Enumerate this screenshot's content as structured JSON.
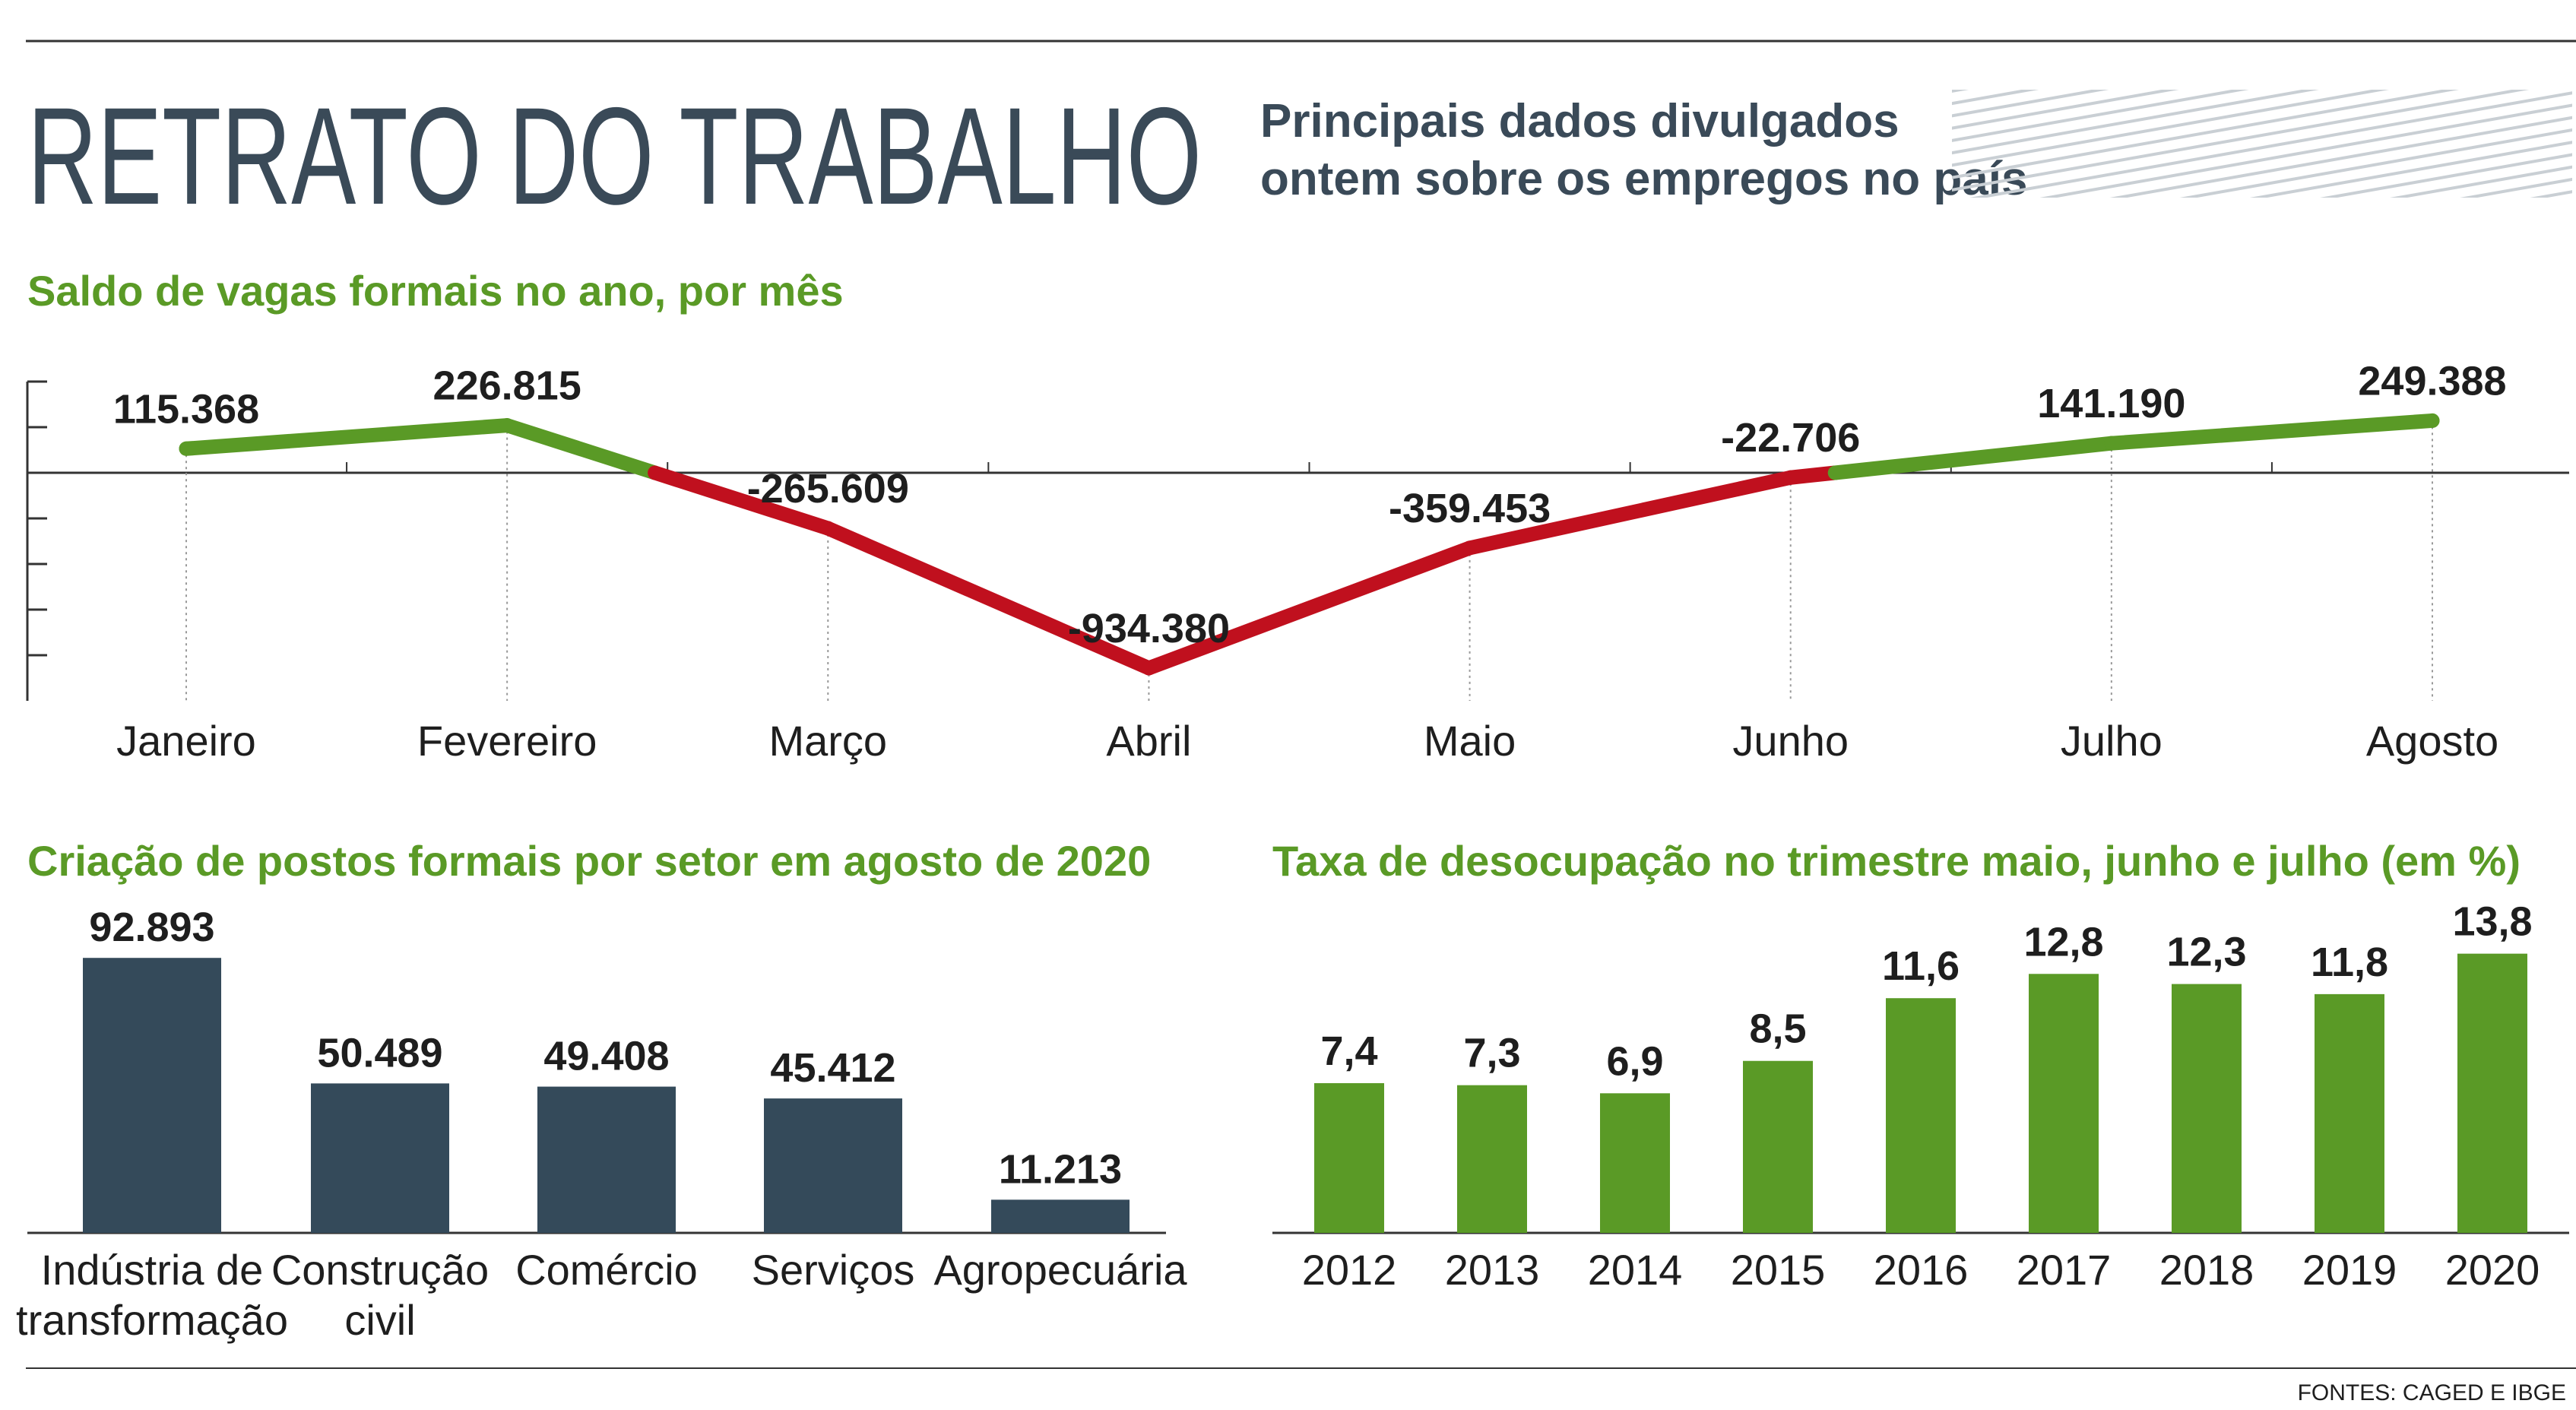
{
  "header": {
    "title": "RETRATO DO TRABALHO",
    "subtitle_line1": "Principais dados divulgados",
    "subtitle_line2": "ontem sobre os empregos no país"
  },
  "colors": {
    "positive": "#5a9a26",
    "negative": "#c0101e",
    "navy": "#344a5a",
    "section_title": "#5a9a26",
    "text": "#1e1e1e",
    "rule": "#333333"
  },
  "chart_data": [
    {
      "id": "saldo",
      "type": "line",
      "title": "Saldo de vagas formais no ano, por mês",
      "categories": [
        "Janeiro",
        "Fevereiro",
        "Março",
        "Abril",
        "Maio",
        "Junho",
        "Julho",
        "Agosto"
      ],
      "values": [
        115368,
        226815,
        -265609,
        -934380,
        -359453,
        -22706,
        141190,
        249388
      ],
      "labels": [
        "115.368",
        "226.815",
        "-265.609",
        "-934.380",
        "-359.453",
        "-22.706",
        "141.190",
        "249.388"
      ],
      "line_colors": {
        "positive": "#5a9a26",
        "negative": "#c0101e"
      },
      "zero_line": true,
      "ylim": [
        -1000000,
        250000
      ]
    },
    {
      "id": "setores",
      "type": "bar",
      "title": "Criação de postos formais por setor em agosto de 2020",
      "categories": [
        [
          "Indústria de",
          "transformação"
        ],
        [
          "Construção",
          "civil"
        ],
        [
          "Comércio"
        ],
        [
          "Serviços"
        ],
        [
          "Agropecuária"
        ]
      ],
      "values": [
        92893,
        50489,
        49408,
        45412,
        11213
      ],
      "labels": [
        "92.893",
        "50.489",
        "49.408",
        "45.412",
        "11.213"
      ],
      "color": "#344a5a",
      "ylim": [
        0,
        95000
      ]
    },
    {
      "id": "desocupacao",
      "type": "bar",
      "title": "Taxa de desocupação no trimestre maio, junho e julho (em %)",
      "categories": [
        "2012",
        "2013",
        "2014",
        "2015",
        "2016",
        "2017",
        "2018",
        "2019",
        "2020"
      ],
      "values": [
        7.4,
        7.3,
        6.9,
        8.5,
        11.6,
        12.8,
        12.3,
        11.8,
        13.8
      ],
      "labels": [
        "7,4",
        "7,3",
        "6,9",
        "8,5",
        "11,6",
        "12,8",
        "12,3",
        "11,8",
        "13,8"
      ],
      "color": "#5a9a26",
      "ylim": [
        0,
        14.2
      ]
    }
  ],
  "footer": {
    "source": "FONTES: CAGED E IBGE"
  }
}
